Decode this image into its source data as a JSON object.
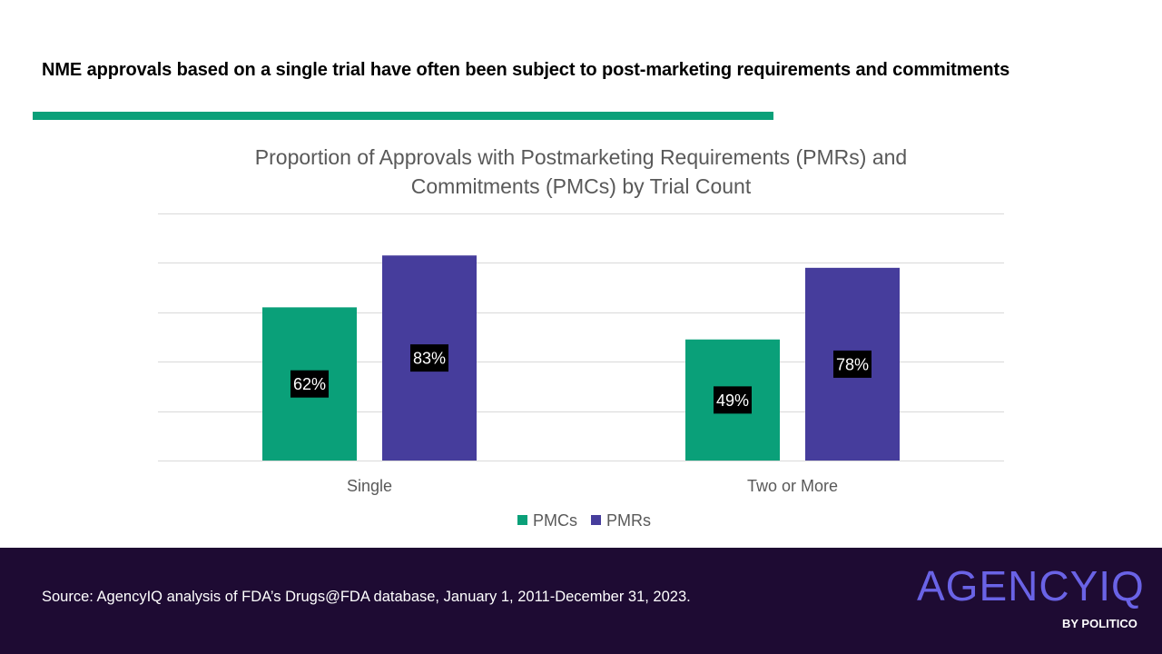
{
  "headline": "NME approvals based on a single trial have often been subject to post-marketing requirements and commitments",
  "colors": {
    "accent_rule": "#0aa079",
    "pmc": "#0aa079",
    "pmr": "#463d9c",
    "footer_bg": "#1e0b33",
    "logo": "#6a63e6",
    "gridline": "#d9d9d9",
    "axis_text": "#595959",
    "label_bg": "#000000",
    "label_text": "#ffffff"
  },
  "chart_data": {
    "type": "bar",
    "title_line1": "Proportion of Approvals with Postmarketing Requirements (PMRs) and",
    "title_line2": "Commitments (PMCs) by Trial Count",
    "categories": [
      "Single",
      "Two or More"
    ],
    "series": [
      {
        "name": "PMCs",
        "values": [
          62,
          49
        ],
        "labels": [
          "62%",
          "49%"
        ]
      },
      {
        "name": "PMRs",
        "values": [
          83,
          78
        ],
        "labels": [
          "83%",
          "78%"
        ]
      }
    ],
    "ylim": [
      0,
      100
    ],
    "y_gridlines": [
      0,
      20,
      40,
      60,
      80,
      100
    ],
    "grid": true,
    "legend": "bottom",
    "xlabel": "",
    "ylabel": ""
  },
  "footer": {
    "source": "Source: AgencyIQ analysis of FDA’s Drugs@FDA database, January 1, 2011-December 31, 2023.",
    "logo_text": "AGENCYIQ",
    "logo_sub": "BY POLITICO"
  }
}
